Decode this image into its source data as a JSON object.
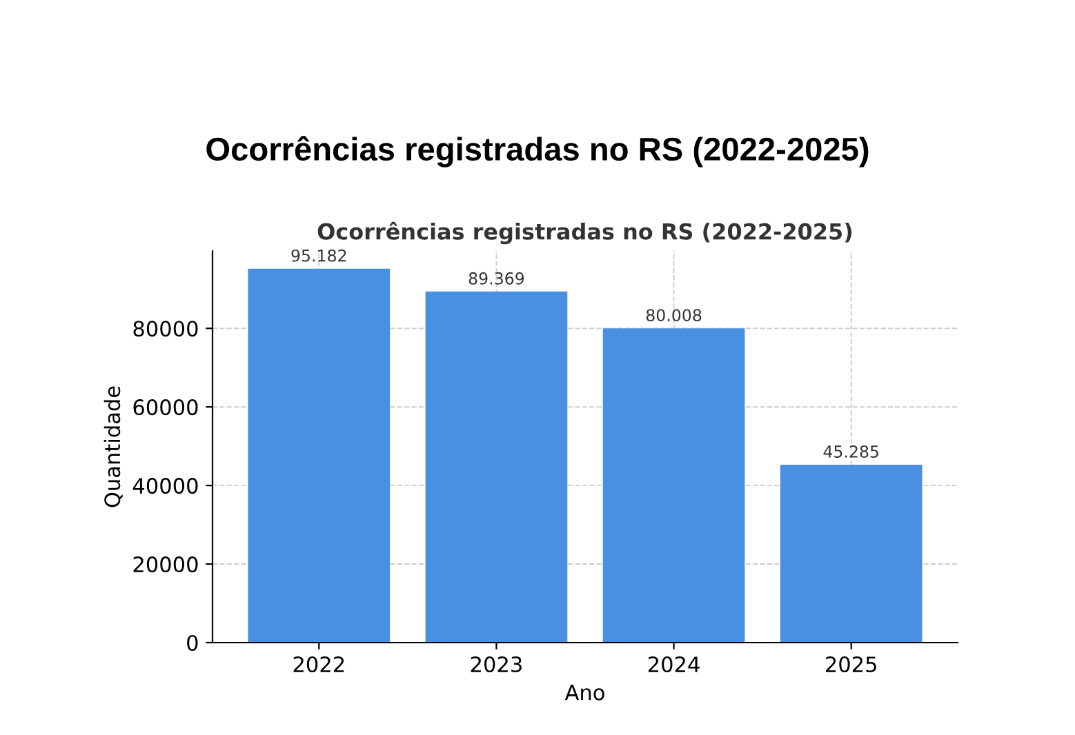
{
  "chart_data": {
    "type": "bar",
    "title": "Ocorrências registradas no RS (2022-2025)",
    "subtitle": "Ocorrências registradas no RS (2022-2025)",
    "xlabel": "Ano",
    "ylabel": "Quantidade",
    "categories": [
      "2022",
      "2023",
      "2024",
      "2025"
    ],
    "values": [
      95182,
      89369,
      80008,
      45285
    ],
    "value_labels": [
      "95.182",
      "89.369",
      "80.008",
      "45.285"
    ],
    "color": "#4a90e2",
    "ylim": [
      0,
      99700
    ],
    "yticks": [
      0,
      20000,
      40000,
      60000,
      80000
    ],
    "grid": true
  }
}
